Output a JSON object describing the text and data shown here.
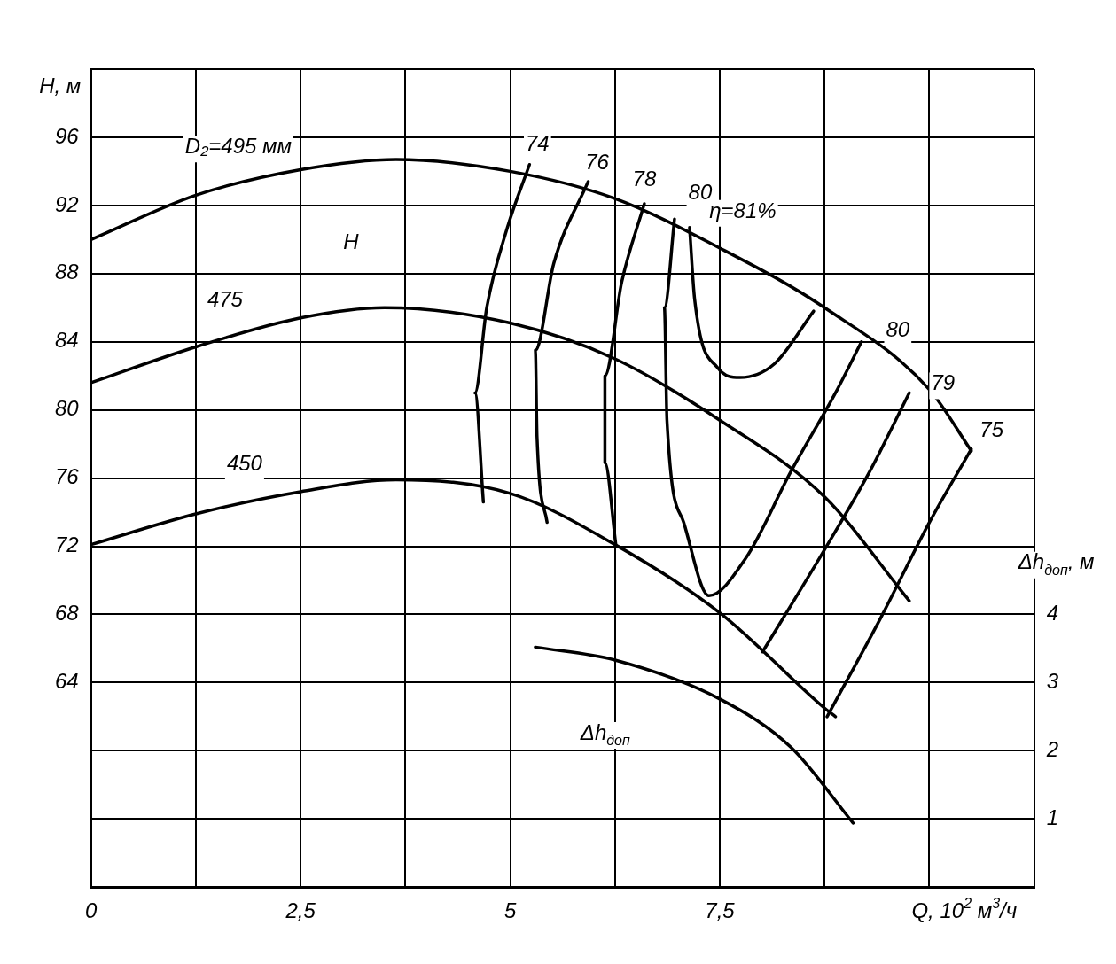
{
  "chart_data": {
    "type": "line",
    "xlabel": "Q, 10$^{2}$ м$^{3}$/ч",
    "ylabel": "H, м",
    "y2label": "Δh$_{доп}$, м",
    "xlim": [
      0,
      11.25
    ],
    "xticks": [
      0,
      {
        "value": 1.25,
        "label": null
      },
      {
        "value": 2.5,
        "label": "2,5"
      },
      {
        "value": 3.75,
        "label": null
      },
      5,
      {
        "value": 6.25,
        "label": null
      },
      {
        "value": 7.5,
        "label": "7,5"
      },
      {
        "value": 8.75,
        "label": null
      },
      {
        "value": 10,
        "label": null
      },
      {
        "value": 11.25,
        "label": null
      }
    ],
    "ylim": [
      52,
      100
    ],
    "yticks": [
      {
        "value": 56,
        "label": null
      },
      {
        "value": 60,
        "label": null
      },
      64,
      68,
      72,
      76,
      80,
      84,
      88,
      92,
      96,
      {
        "value": 100,
        "label": null
      }
    ],
    "y2lim": [
      0,
      12
    ],
    "y2ticks": [
      1,
      2,
      3,
      4
    ],
    "grid": true,
    "legend": false,
    "marker": "none",
    "line_style": "solid",
    "series": [
      {
        "name": "D₂=495 мм",
        "color": "#000000",
        "x": [
          0,
          1.25,
          2.5,
          3.64,
          5,
          6.25,
          7.5,
          8.75,
          10,
          10.5
        ],
        "values": [
          90,
          92.6,
          94.1,
          94.7,
          94,
          92.4,
          89.5,
          86,
          81.2,
          77.6
        ]
      },
      {
        "name": "475",
        "color": "#000000",
        "x": [
          0,
          1.25,
          2.5,
          3.5,
          5,
          6.25,
          7.5,
          8.75,
          9.76
        ],
        "values": [
          81.6,
          83.7,
          85.4,
          86,
          85.1,
          83,
          79.4,
          74.9,
          68.8
        ]
      },
      {
        "name": "450",
        "color": "#000000",
        "x": [
          0,
          1.25,
          2.5,
          3.64,
          5,
          6.25,
          7.5,
          8.75,
          8.88
        ],
        "values": [
          72.1,
          73.9,
          75.2,
          75.9,
          75.1,
          72.1,
          68.1,
          62.5,
          62
        ]
      },
      {
        "name": "74",
        "color": "#000000",
        "x": [
          5.23,
          4.96,
          4.72,
          4.58,
          4.68
        ],
        "values": [
          94.4,
          90.6,
          86,
          81,
          74.6
        ]
      },
      {
        "name": "76",
        "color": "#000000",
        "x": [
          5.93,
          5.52,
          5.3,
          5.32,
          5.44
        ],
        "values": [
          93.4,
          88.6,
          83.5,
          78.4,
          73.4
        ]
      },
      {
        "name": "78",
        "color": "#000000",
        "x": [
          6.6,
          6.33,
          6.13,
          6.13,
          6.26
        ],
        "values": [
          92.1,
          87.5,
          82,
          76.9,
          72.1
        ]
      },
      {
        "name": "80",
        "color": "#000000",
        "x": [
          6.96,
          6.84,
          6.87,
          7.07,
          7.37,
          7.81,
          8.35,
          8.88,
          9.19
        ],
        "values": [
          91.2,
          86,
          79.4,
          73.4,
          69.1,
          71.3,
          76.4,
          81,
          84
        ]
      },
      {
        "name": "η=81%",
        "color": "#000000",
        "x": [
          7.14,
          7.2,
          7.47,
          7.74,
          8.15,
          8.62
        ],
        "values": [
          90.7,
          86.5,
          82.5,
          81.9,
          82.7,
          85.8
        ]
      },
      {
        "name": "79",
        "color": "#000000",
        "x": [
          9.76,
          9.29,
          8.75,
          8.01
        ],
        "values": [
          81,
          76.4,
          71.8,
          65.8
        ]
      },
      {
        "name": "75",
        "color": "#000000",
        "x": [
          10.5,
          10,
          9.42,
          8.78
        ],
        "values": [
          77.7,
          73.4,
          67.8,
          62
        ]
      },
      {
        "name": "Δh$_{доп}$",
        "color": "#000000",
        "axis": "y2",
        "x": [
          5.3,
          6.25,
          7.5,
          8.35,
          9.09
        ],
        "values": [
          3.52,
          3.33,
          2.76,
          2.05,
          0.94
        ]
      }
    ],
    "annotations": [
      "H"
    ]
  }
}
